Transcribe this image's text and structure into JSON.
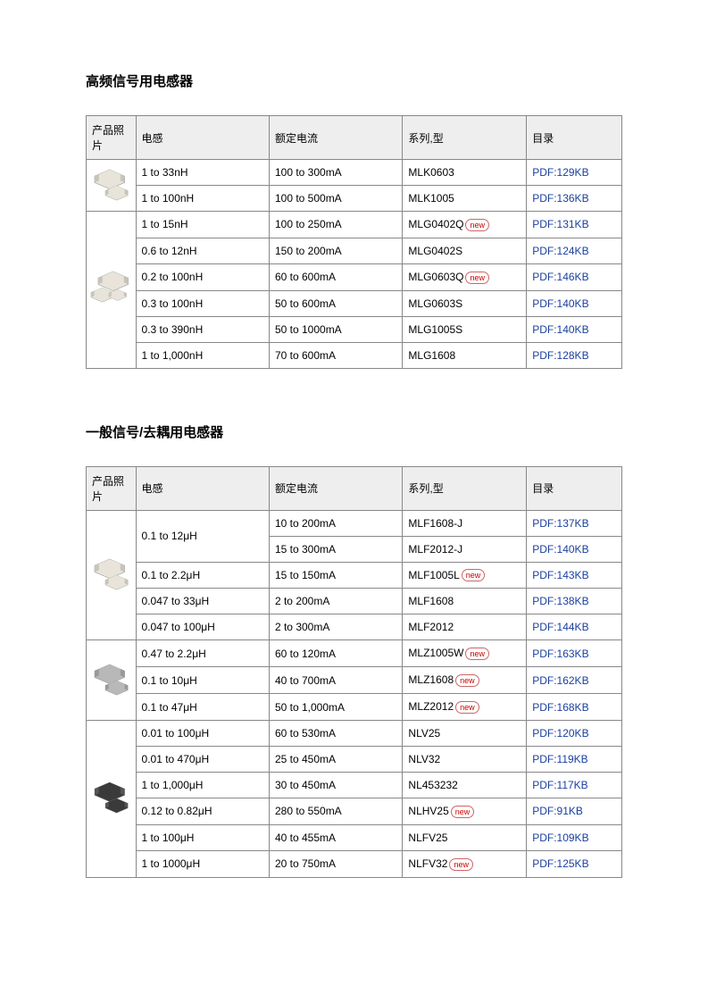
{
  "sections": [
    {
      "title": "高频信号用电感器",
      "headers": [
        "产品照片",
        "电感",
        "额定电流",
        "系列,型",
        "目录"
      ],
      "groups": [
        {
          "photo": "chip-pair-light",
          "rows": [
            {
              "inductance": "1 to 33nH",
              "current": "100 to 300mA",
              "series": "MLK0603",
              "new": false,
              "catalog": "PDF:129KB"
            },
            {
              "inductance": "1 to 100nH",
              "current": "100 to 500mA",
              "series": "MLK1005",
              "new": false,
              "catalog": "PDF:136KB"
            }
          ]
        },
        {
          "photo": "chip-trio-light",
          "rows": [
            {
              "inductance": "1 to 15nH",
              "current": "100 to 250mA",
              "series": "MLG0402Q",
              "new": true,
              "catalog": "PDF:131KB"
            },
            {
              "inductance": "0.6 to 12nH",
              "current": "150 to 200mA",
              "series": "MLG0402S",
              "new": false,
              "catalog": "PDF:124KB"
            },
            {
              "inductance": "0.2 to 100nH",
              "current": "60 to 600mA",
              "series": "MLG0603Q",
              "new": true,
              "catalog": "PDF:146KB"
            },
            {
              "inductance": "0.3 to 100nH",
              "current": "50 to 600mA",
              "series": "MLG0603S",
              "new": false,
              "catalog": "PDF:140KB"
            },
            {
              "inductance": "0.3 to 390nH",
              "current": "50 to 1000mA",
              "series": "MLG1005S",
              "new": false,
              "catalog": "PDF:140KB"
            },
            {
              "inductance": "1 to 1,000nH",
              "current": "70 to 600mA",
              "series": "MLG1608",
              "new": false,
              "catalog": "PDF:128KB"
            }
          ]
        }
      ]
    },
    {
      "title": "一般信号/去耦用电感器",
      "headers": [
        "产品照片",
        "电感",
        "额定电流",
        "系列,型",
        "目录"
      ],
      "groups": [
        {
          "photo": "chip-pair-light",
          "rows": [
            {
              "inductance": "0.1 to 12μH",
              "ind_rowspan": 2,
              "current": "10 to 200mA",
              "series": "MLF1608-J",
              "new": false,
              "catalog": "PDF:137KB"
            },
            {
              "inductance": null,
              "current": "15 to 300mA",
              "series": "MLF2012-J",
              "new": false,
              "catalog": "PDF:140KB"
            },
            {
              "inductance": "0.1 to 2.2μH",
              "current": "15 to 150mA",
              "series": "MLF1005L",
              "new": true,
              "catalog": "PDF:143KB"
            },
            {
              "inductance": "0.047 to 33μH",
              "current": "2 to 200mA",
              "series": "MLF1608",
              "new": false,
              "catalog": "PDF:138KB"
            },
            {
              "inductance": "0.047 to 100μH",
              "current": "2 to 300mA",
              "series": "MLF2012",
              "new": false,
              "catalog": "PDF:144KB"
            }
          ]
        },
        {
          "photo": "chip-pair-gray",
          "rows": [
            {
              "inductance": "0.47 to 2.2μH",
              "current": "60 to 120mA",
              "series": "MLZ1005W",
              "new": true,
              "catalog": "PDF:163KB"
            },
            {
              "inductance": "0.1 to 10μH",
              "current": "40 to 700mA",
              "series": "MLZ1608",
              "new": true,
              "catalog": "PDF:162KB"
            },
            {
              "inductance": "0.1 to 47μH",
              "current": "50 to 1,000mA",
              "series": "MLZ2012",
              "new": true,
              "catalog": "PDF:168KB"
            }
          ]
        },
        {
          "photo": "chip-pair-dark",
          "rows": [
            {
              "inductance": "0.01 to 100μH",
              "current": "60 to 530mA",
              "series": "NLV25",
              "new": false,
              "catalog": "PDF:120KB"
            },
            {
              "inductance": "0.01 to 470μH",
              "current": "25 to 450mA",
              "series": "NLV32",
              "new": false,
              "catalog": "PDF:119KB"
            },
            {
              "inductance": "1 to 1,000μH",
              "current": "30 to 450mA",
              "series": "NL453232",
              "new": false,
              "catalog": "PDF:117KB"
            },
            {
              "inductance": "0.12 to 0.82μH",
              "current": "280 to 550mA",
              "series": "NLHV25",
              "new": true,
              "catalog": "PDF:91KB"
            },
            {
              "inductance": "1 to 100μH",
              "current": "40 to 455mA",
              "series": "NLFV25",
              "new": false,
              "catalog": "PDF:109KB"
            },
            {
              "inductance": "1 to 1000μH",
              "current": "20 to 750mA",
              "series": "NLFV32",
              "new": true,
              "catalog": "PDF:125KB"
            }
          ]
        }
      ]
    }
  ],
  "new_label": "new",
  "colors": {
    "header_bg": "#eeeeee",
    "border": "#888888",
    "link": "#1a3f9e",
    "new_text": "#cc0000",
    "new_border": "#cc6666"
  }
}
